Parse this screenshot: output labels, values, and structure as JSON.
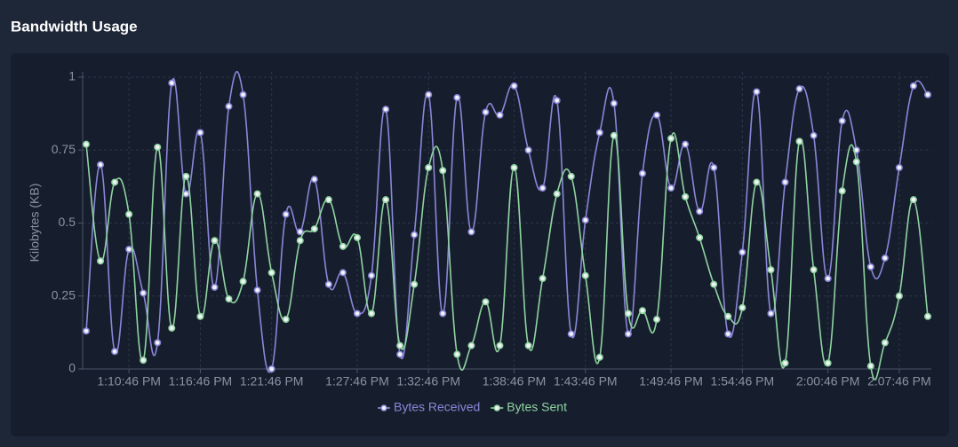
{
  "chart_data": {
    "type": "line",
    "title": "Bandwidth Usage",
    "y_label": "Kilobytes (KB)",
    "categories": [
      null,
      null,
      null,
      "1:10:46 PM",
      null,
      null,
      null,
      null,
      "1:16:46 PM",
      null,
      null,
      null,
      null,
      "1:21:46 PM",
      null,
      null,
      null,
      null,
      null,
      "1:27:46 PM",
      null,
      null,
      null,
      null,
      "1:32:46 PM",
      null,
      null,
      null,
      null,
      null,
      "1:38:46 PM",
      null,
      null,
      null,
      null,
      "1:43:46 PM",
      null,
      null,
      null,
      null,
      null,
      "1:49:46 PM",
      null,
      null,
      null,
      null,
      "1:54:46 PM",
      null,
      null,
      null,
      null,
      null,
      "2:00:46 PM",
      null,
      null,
      null,
      null,
      "2:07:46 PM",
      null,
      null
    ],
    "series": [
      {
        "name": "Bytes Received",
        "color": "#8a86d8",
        "values": [
          0.13,
          0.7,
          0.06,
          0.41,
          0.26,
          0.09,
          0.98,
          0.6,
          0.81,
          0.28,
          0.9,
          0.94,
          0.27,
          0.0,
          0.53,
          0.47,
          0.65,
          0.29,
          0.33,
          0.19,
          0.32,
          0.89,
          0.05,
          0.46,
          0.94,
          0.19,
          0.93,
          0.47,
          0.88,
          0.87,
          0.97,
          0.75,
          0.62,
          0.92,
          0.12,
          0.51,
          0.81,
          0.91,
          0.12,
          0.67,
          0.87,
          0.62,
          0.77,
          0.54,
          0.69,
          0.12,
          0.4,
          0.95,
          0.19,
          0.64,
          0.96,
          0.8,
          0.31,
          0.85,
          0.75,
          0.35,
          0.38,
          0.69,
          0.97,
          0.94
        ]
      },
      {
        "name": "Bytes Sent",
        "color": "#8fd3a0",
        "values": [
          0.77,
          0.37,
          0.64,
          0.53,
          0.03,
          0.76,
          0.14,
          0.66,
          0.18,
          0.44,
          0.24,
          0.3,
          0.6,
          0.33,
          0.17,
          0.44,
          0.48,
          0.58,
          0.42,
          0.45,
          0.19,
          0.58,
          0.08,
          0.29,
          0.69,
          0.68,
          0.05,
          0.08,
          0.23,
          0.08,
          0.69,
          0.08,
          0.31,
          0.6,
          0.66,
          0.32,
          0.04,
          0.8,
          0.19,
          0.2,
          0.17,
          0.79,
          0.59,
          0.45,
          0.29,
          0.18,
          0.21,
          0.64,
          0.34,
          0.02,
          0.78,
          0.34,
          0.02,
          0.61,
          0.71,
          0.01,
          0.09,
          0.25,
          0.58,
          0.18
        ]
      }
    ],
    "ylim": [
      0,
      1
    ],
    "yticks": [
      0,
      0.25,
      0.5,
      0.75,
      1
    ],
    "grid": true,
    "legend": "bottom"
  }
}
